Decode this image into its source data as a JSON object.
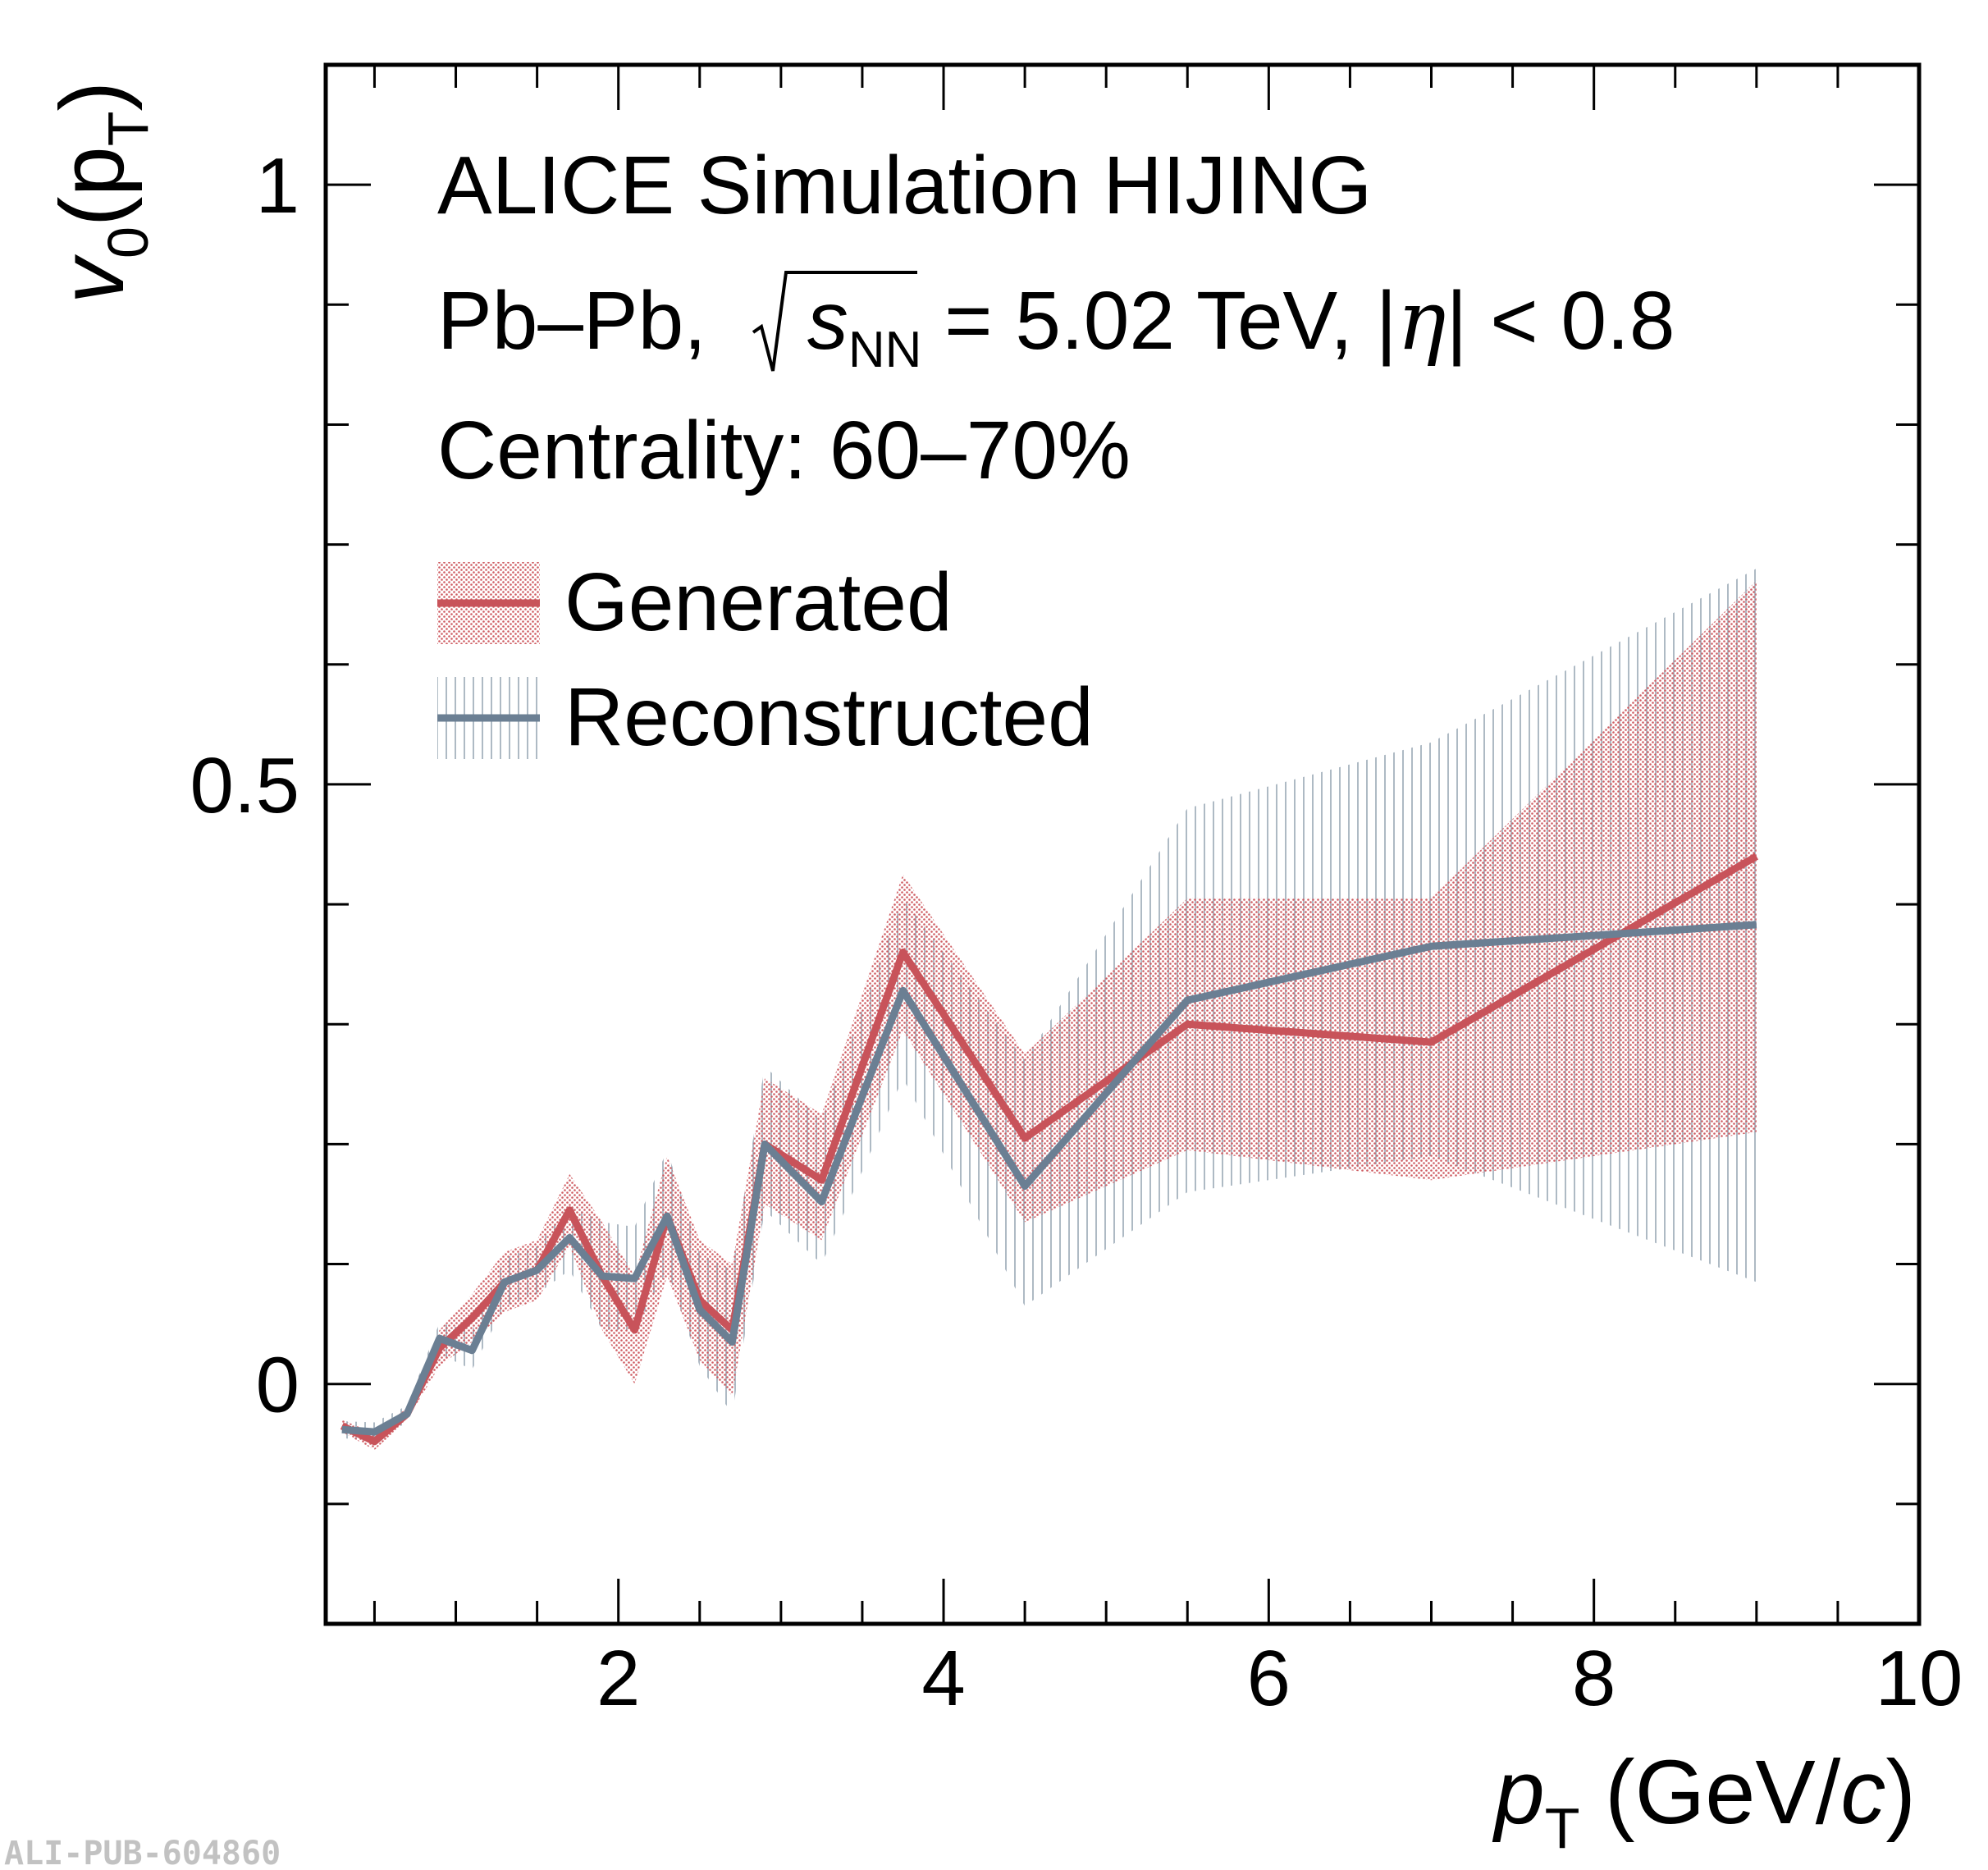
{
  "chart_data": {
    "type": "line",
    "xlabel": {
      "main": "p",
      "sub": "T",
      "units_pre": " (GeV/",
      "units_var": "c",
      "units_post": ")"
    },
    "ylabel": {
      "main": "v",
      "sub": "0",
      "mid": "(p",
      "sub2": "T",
      "end": ")"
    },
    "xlim": [
      0.2,
      10
    ],
    "ylim": [
      -0.2,
      1.1
    ],
    "x_ticks": [
      2,
      4,
      6,
      8,
      10
    ],
    "x_tick_labels": [
      "2",
      "4",
      "6",
      "8",
      "10"
    ],
    "y_ticks": [
      0,
      0.5,
      1
    ],
    "y_tick_labels": [
      "0",
      "0.5",
      "1"
    ],
    "annotations": [
      {
        "text": "ALICE Simulation HIJING"
      },
      {
        "pre": "Pb–Pb, ",
        "root_var": "s",
        "root_sub": "NN",
        "mid": " = 5.02 TeV, |",
        "eta": "η",
        "post": "| < 0.8"
      },
      {
        "text": "Centrality: 60–70%"
      }
    ],
    "legend_position": "top-left",
    "series": [
      {
        "name": "Generated",
        "color": "#c8535a",
        "band_style": "dotted",
        "x": [
          0.3,
          0.5,
          0.7,
          0.9,
          1.1,
          1.3,
          1.5,
          1.7,
          1.9,
          2.1,
          2.3,
          2.5,
          2.7,
          2.9,
          3.25,
          3.75,
          4.5,
          5.5,
          7.0,
          9.0
        ],
        "y": [
          -0.035,
          -0.048,
          -0.025,
          0.03,
          0.055,
          0.085,
          0.095,
          0.145,
          0.09,
          0.045,
          0.14,
          0.07,
          0.045,
          0.2,
          0.17,
          0.36,
          0.205,
          0.3,
          0.285,
          0.44
        ],
        "lo": [
          -0.04,
          -0.055,
          -0.03,
          0.015,
          0.035,
          0.06,
          0.07,
          0.115,
          0.045,
          0.0,
          0.09,
          0.02,
          -0.01,
          0.15,
          0.12,
          0.295,
          0.135,
          0.195,
          0.17,
          0.21
        ],
        "hi": [
          -0.03,
          -0.041,
          -0.02,
          0.045,
          0.075,
          0.11,
          0.12,
          0.175,
          0.135,
          0.09,
          0.19,
          0.12,
          0.1,
          0.255,
          0.225,
          0.425,
          0.275,
          0.405,
          0.405,
          0.67
        ]
      },
      {
        "name": "Reconstructed",
        "color": "#6b7f93",
        "band_style": "hatched",
        "x": [
          0.3,
          0.5,
          0.7,
          0.9,
          1.1,
          1.3,
          1.5,
          1.7,
          1.9,
          2.1,
          2.3,
          2.5,
          2.7,
          2.9,
          3.25,
          3.75,
          4.5,
          5.5,
          7.0,
          9.0
        ],
        "y": [
          -0.038,
          -0.04,
          -0.025,
          0.038,
          0.028,
          0.085,
          0.095,
          0.122,
          0.09,
          0.088,
          0.14,
          0.062,
          0.035,
          0.2,
          0.152,
          0.328,
          0.165,
          0.32,
          0.365,
          0.383
        ],
        "lo": [
          -0.045,
          -0.048,
          -0.032,
          0.025,
          0.012,
          0.065,
          0.075,
          0.095,
          0.045,
          0.045,
          0.095,
          0.015,
          -0.025,
          0.145,
          0.1,
          0.255,
          0.065,
          0.16,
          0.19,
          0.085
        ],
        "hi": [
          -0.031,
          -0.032,
          -0.018,
          0.051,
          0.044,
          0.105,
          0.115,
          0.149,
          0.135,
          0.131,
          0.195,
          0.109,
          0.095,
          0.265,
          0.22,
          0.405,
          0.27,
          0.48,
          0.535,
          0.68
        ]
      }
    ]
  },
  "watermark": "ALI-PUB-604860"
}
